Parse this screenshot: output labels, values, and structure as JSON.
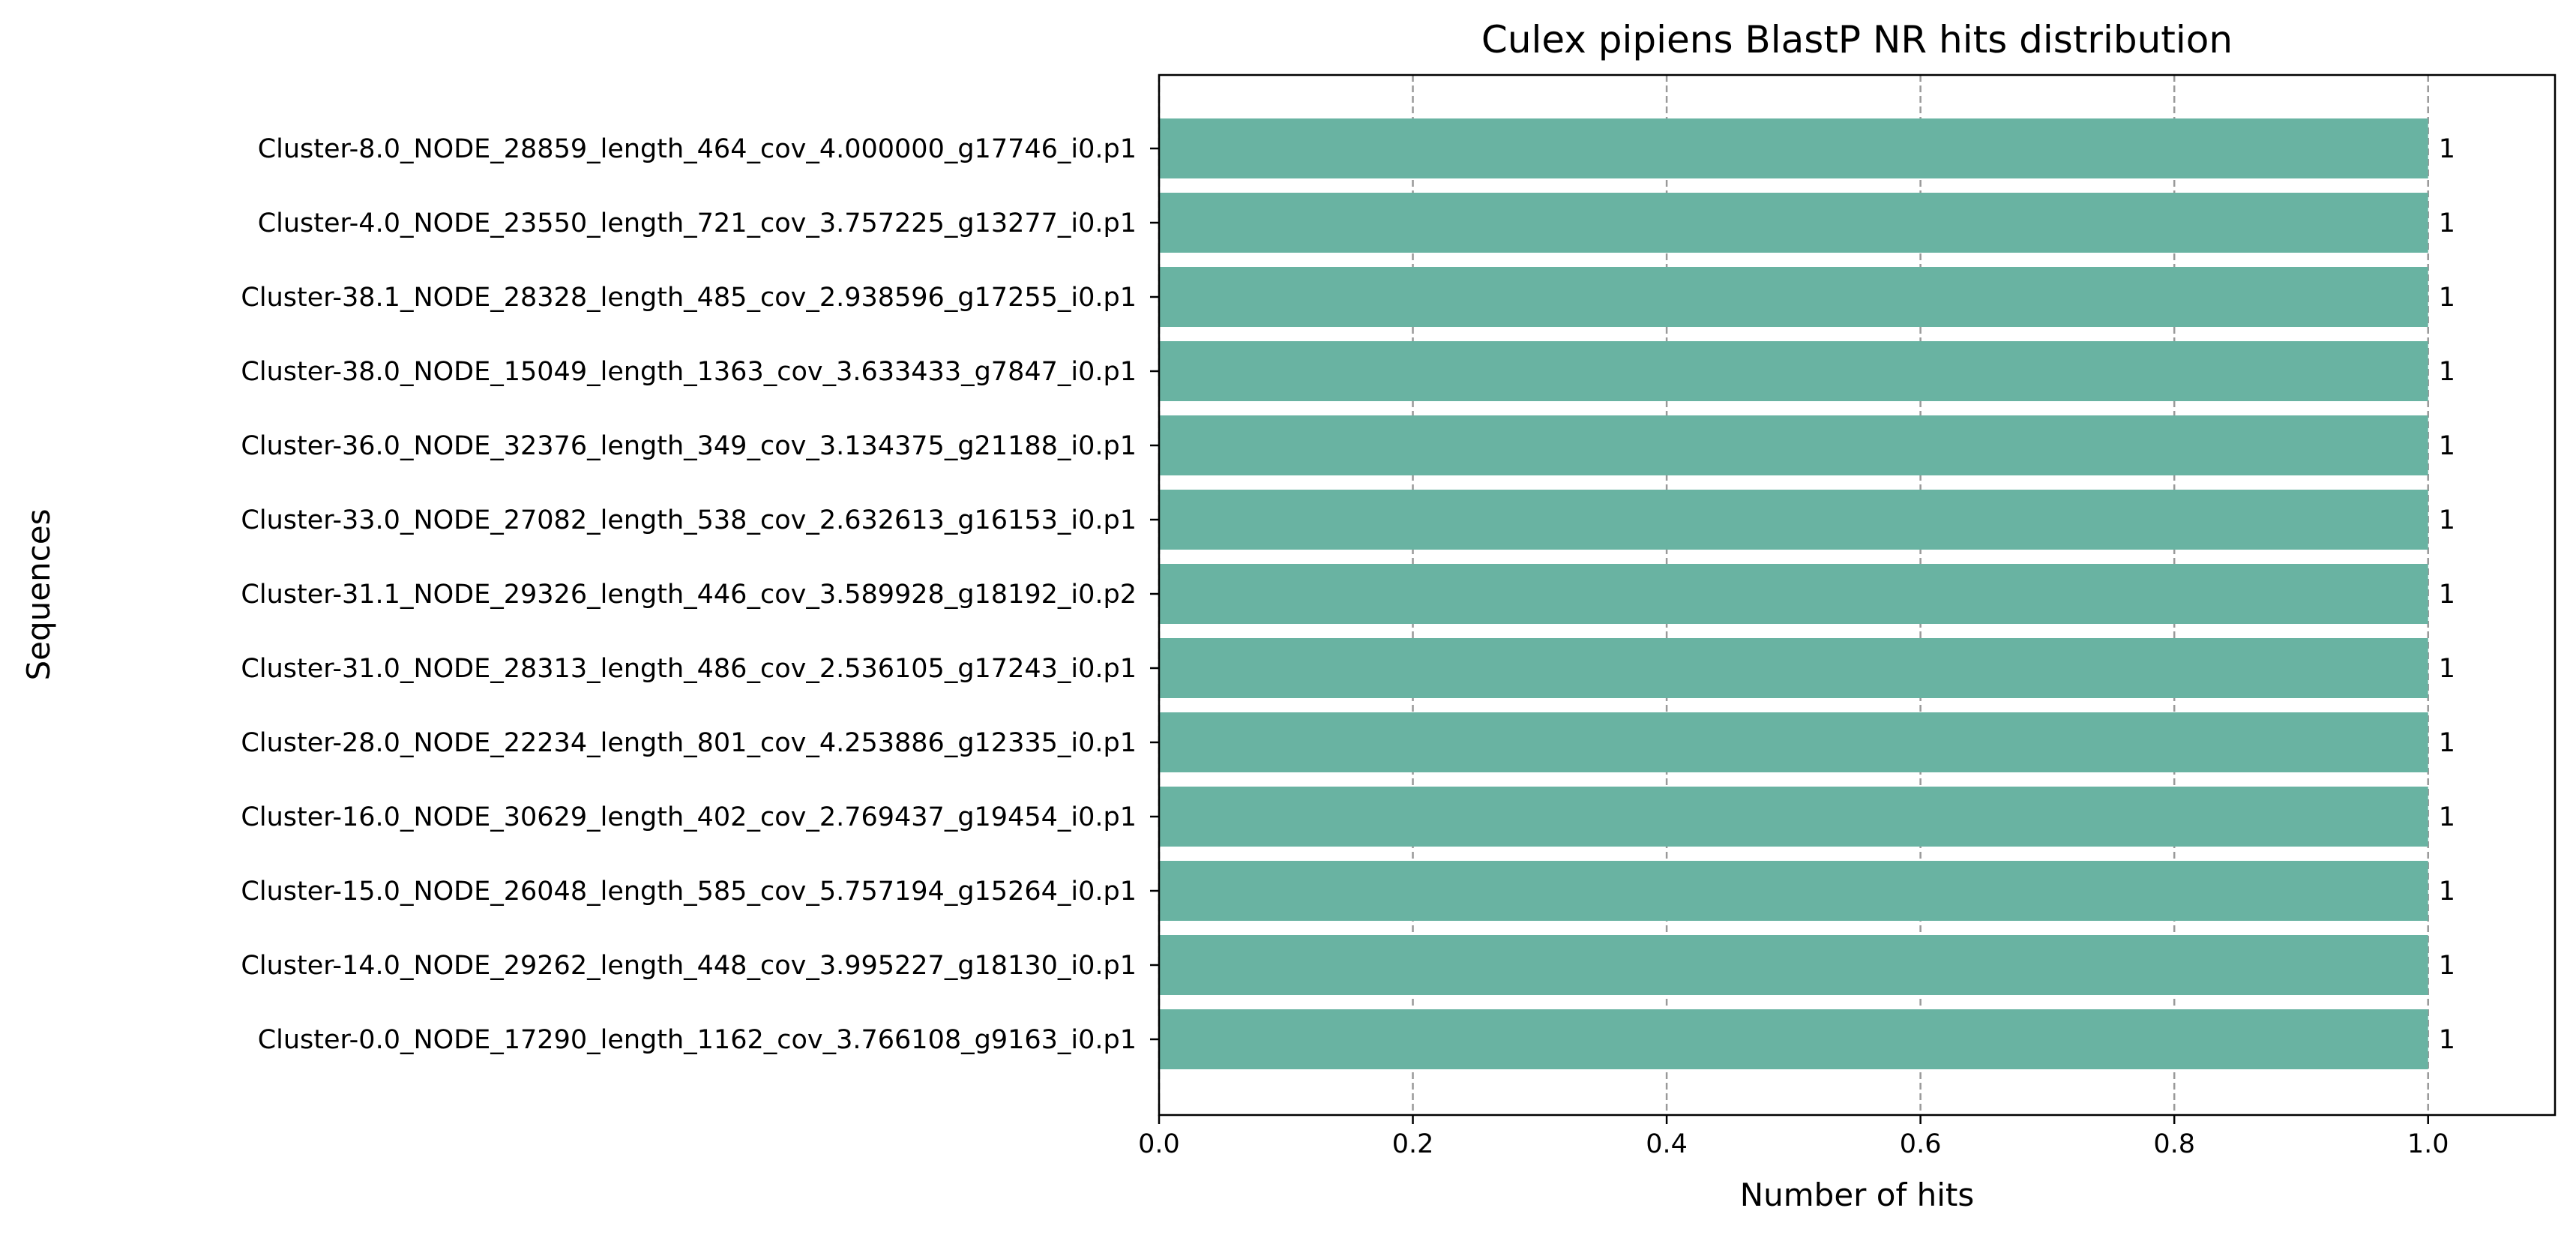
{
  "chart_data": {
    "type": "bar",
    "orientation": "horizontal",
    "title": "Culex pipiens BlastP NR hits distribution",
    "xlabel": "Number of hits",
    "ylabel": "Sequences",
    "categories": [
      "Cluster-8.0_NODE_28859_length_464_cov_4.000000_g17746_i0.p1",
      "Cluster-4.0_NODE_23550_length_721_cov_3.757225_g13277_i0.p1",
      "Cluster-38.1_NODE_28328_length_485_cov_2.938596_g17255_i0.p1",
      "Cluster-38.0_NODE_15049_length_1363_cov_3.633433_g7847_i0.p1",
      "Cluster-36.0_NODE_32376_length_349_cov_3.134375_g21188_i0.p1",
      "Cluster-33.0_NODE_27082_length_538_cov_2.632613_g16153_i0.p1",
      "Cluster-31.1_NODE_29326_length_446_cov_3.589928_g18192_i0.p2",
      "Cluster-31.0_NODE_28313_length_486_cov_2.536105_g17243_i0.p1",
      "Cluster-28.0_NODE_22234_length_801_cov_4.253886_g12335_i0.p1",
      "Cluster-16.0_NODE_30629_length_402_cov_2.769437_g19454_i0.p1",
      "Cluster-15.0_NODE_26048_length_585_cov_5.757194_g15264_i0.p1",
      "Cluster-14.0_NODE_29262_length_448_cov_3.995227_g18130_i0.p1",
      "Cluster-0.0_NODE_17290_length_1162_cov_3.766108_g9163_i0.p1"
    ],
    "values": [
      1,
      1,
      1,
      1,
      1,
      1,
      1,
      1,
      1,
      1,
      1,
      1,
      1
    ],
    "data_labels": [
      "1",
      "1",
      "1",
      "1",
      "1",
      "1",
      "1",
      "1",
      "1",
      "1",
      "1",
      "1",
      "1"
    ],
    "xlim": [
      0,
      1.1
    ],
    "xticks": [
      0.0,
      0.2,
      0.4,
      0.6,
      0.8,
      1.0
    ],
    "xtick_labels": [
      "0.0",
      "0.2",
      "0.4",
      "0.6",
      "0.8",
      "1.0"
    ],
    "grid": "vertical dashed",
    "bar_color": "#69b3a2",
    "grid_color": "#999999"
  }
}
